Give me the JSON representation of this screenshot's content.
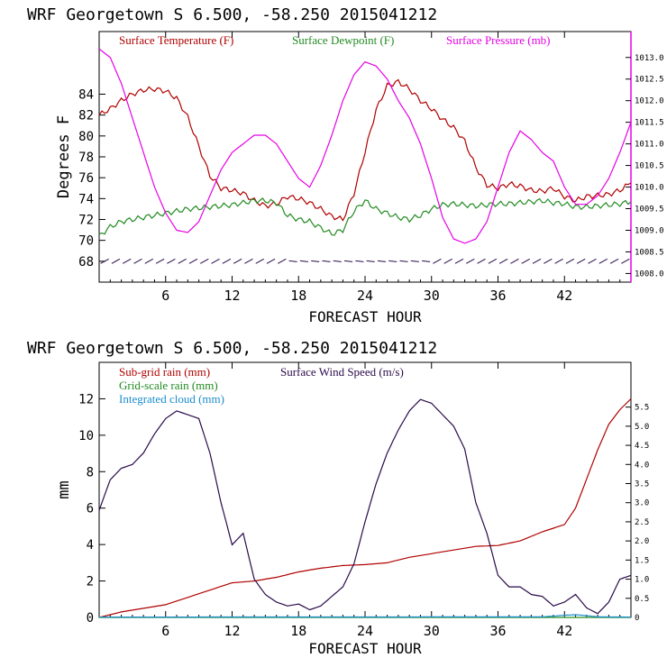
{
  "chart_data": [
    {
      "type": "line",
      "title": "WRF   Georgetown S   6.500, -58.250  2015041212",
      "xlabel": "FORECAST HOUR",
      "ylabel": "Degrees F",
      "xlim": [
        0,
        48
      ],
      "ylim": [
        66,
        90
      ],
      "y2lim": [
        1007.8,
        1013.6
      ],
      "xticks": [
        "6",
        "12",
        "18",
        "24",
        "30",
        "36",
        "42"
      ],
      "yticks": [
        "68",
        "70",
        "72",
        "74",
        "76",
        "78",
        "80",
        "82",
        "84"
      ],
      "y2ticks": [
        "1008.0",
        "1008.5",
        "1009.0",
        "1009.5",
        "1010.0",
        "1010.5",
        "1011.0",
        "1011.5",
        "1012.0",
        "1012.5",
        "1013.0"
      ],
      "legend": [
        {
          "label": "Surface Temperature (F)",
          "color": "#b00000"
        },
        {
          "label": "Surface Dewpoint (F)",
          "color": "#228b22"
        },
        {
          "label": "Surface Pressure (mb)",
          "color": "#e600e6"
        }
      ],
      "wind_barbs": "row of wind barbs along 68 F",
      "series": [
        {
          "name": "Surface Temperature (F)",
          "axis": "left",
          "color": "#b00000",
          "x": [
            0,
            1,
            2,
            3,
            4,
            5,
            6,
            7,
            8,
            9,
            10,
            11,
            12,
            13,
            14,
            15,
            16,
            17,
            18,
            19,
            20,
            21,
            22,
            23,
            24,
            25,
            26,
            27,
            28,
            29,
            30,
            31,
            32,
            33,
            34,
            35,
            36,
            37,
            38,
            39,
            40,
            41,
            42,
            43,
            44,
            45,
            46,
            47,
            48
          ],
          "y": [
            82.0,
            82.6,
            83.4,
            84.0,
            84.4,
            84.5,
            84.3,
            83.6,
            81.8,
            79.0,
            76.2,
            75.0,
            74.8,
            74.5,
            73.8,
            73.3,
            73.5,
            74.2,
            74.0,
            73.6,
            73.0,
            72.3,
            72.0,
            74.5,
            78.5,
            82.5,
            84.8,
            85.2,
            84.5,
            83.4,
            82.6,
            81.6,
            80.8,
            79.5,
            77.0,
            75.3,
            75.0,
            75.4,
            75.2,
            74.8,
            74.7,
            75.0,
            74.2,
            73.8,
            74.2,
            74.3,
            74.4,
            74.8,
            75.5
          ]
        },
        {
          "name": "Surface Dewpoint (F)",
          "axis": "left",
          "color": "#228b22",
          "x": [
            0,
            1,
            2,
            3,
            4,
            5,
            6,
            7,
            8,
            9,
            10,
            11,
            12,
            13,
            14,
            15,
            16,
            17,
            18,
            19,
            20,
            21,
            22,
            23,
            24,
            25,
            26,
            27,
            28,
            29,
            30,
            31,
            32,
            33,
            34,
            35,
            36,
            37,
            38,
            39,
            40,
            41,
            42,
            43,
            44,
            45,
            46,
            47,
            48
          ],
          "y": [
            70.4,
            71.3,
            71.8,
            72.0,
            72.2,
            72.4,
            72.6,
            72.8,
            73.0,
            73.1,
            73.2,
            73.3,
            73.4,
            73.6,
            73.8,
            73.8,
            73.6,
            72.4,
            72.0,
            71.8,
            71.2,
            70.6,
            71.0,
            72.8,
            73.8,
            73.0,
            72.6,
            72.2,
            72.0,
            72.4,
            73.0,
            73.4,
            73.5,
            73.4,
            73.3,
            73.4,
            73.5,
            73.5,
            73.6,
            73.7,
            73.8,
            73.6,
            73.5,
            73.2,
            73.2,
            73.3,
            73.4,
            73.5,
            73.7
          ]
        },
        {
          "name": "Surface Pressure (mb)",
          "axis": "right",
          "color": "#e600e6",
          "x": [
            0,
            1,
            2,
            3,
            4,
            5,
            6,
            7,
            8,
            9,
            10,
            11,
            12,
            13,
            14,
            15,
            16,
            17,
            18,
            19,
            20,
            21,
            22,
            23,
            24,
            25,
            26,
            27,
            28,
            29,
            30,
            31,
            32,
            33,
            34,
            35,
            36,
            37,
            38,
            39,
            40,
            41,
            42,
            43,
            44,
            45,
            46,
            47,
            48
          ],
          "y": [
            1013.2,
            1013.0,
            1012.4,
            1011.6,
            1010.8,
            1010.0,
            1009.4,
            1009.0,
            1008.95,
            1009.2,
            1009.8,
            1010.4,
            1010.8,
            1011.0,
            1011.2,
            1011.2,
            1011.0,
            1010.6,
            1010.2,
            1010.0,
            1010.5,
            1011.2,
            1012.0,
            1012.6,
            1012.9,
            1012.8,
            1012.5,
            1012.0,
            1011.6,
            1011.0,
            1010.2,
            1009.3,
            1008.8,
            1008.7,
            1008.8,
            1009.2,
            1010.0,
            1010.8,
            1011.3,
            1011.1,
            1010.8,
            1010.6,
            1010.0,
            1009.6,
            1009.6,
            1009.8,
            1010.2,
            1010.8,
            1011.5
          ]
        }
      ]
    },
    {
      "type": "line",
      "title": "WRF   Georgetown S   6.500, -58.250  2015041212",
      "xlabel": "FORECAST HOUR",
      "ylabel": "mm",
      "xlim": [
        0,
        48
      ],
      "ylim": [
        0,
        14
      ],
      "y2lim": [
        0,
        6.67
      ],
      "xticks": [
        "6",
        "12",
        "18",
        "24",
        "30",
        "36",
        "42"
      ],
      "yticks": [
        "0",
        "2",
        "4",
        "6",
        "8",
        "10",
        "12"
      ],
      "y2ticks": [
        "0",
        "0.5",
        "1.0",
        "1.5",
        "2.0",
        "2.5",
        "3.0",
        "3.5",
        "4.0",
        "4.5",
        "5.0",
        "5.5"
      ],
      "legend": [
        {
          "label": "Sub-grid rain (mm)",
          "color": "#b00000"
        },
        {
          "label": "Surface Wind Speed (m/s)",
          "color": "#2a0a4a"
        },
        {
          "label": "Grid-scale rain (mm)",
          "color": "#228b22"
        },
        {
          "label": "Integrated cloud (mm)",
          "color": "#1a8ccc"
        }
      ],
      "series": [
        {
          "name": "Sub-grid rain (mm)",
          "axis": "left",
          "color": "#b00000",
          "x": [
            0,
            2,
            4,
            6,
            8,
            10,
            12,
            14,
            16,
            18,
            20,
            22,
            24,
            26,
            28,
            30,
            32,
            34,
            36,
            38,
            40,
            42,
            43,
            44,
            45,
            46,
            47,
            48
          ],
          "y": [
            0,
            0.3,
            0.5,
            0.7,
            1.1,
            1.5,
            1.9,
            2.0,
            2.2,
            2.5,
            2.7,
            2.85,
            2.9,
            3.0,
            3.3,
            3.5,
            3.7,
            3.9,
            3.95,
            4.2,
            4.7,
            5.1,
            6.0,
            7.6,
            9.2,
            10.6,
            11.4,
            12.0
          ]
        },
        {
          "name": "Surface Wind Speed (m/s)",
          "axis": "right",
          "color": "#2a0a4a",
          "x": [
            0,
            1,
            2,
            3,
            4,
            5,
            6,
            7,
            8,
            9,
            10,
            11,
            12,
            13,
            14,
            15,
            16,
            17,
            18,
            19,
            20,
            21,
            22,
            23,
            24,
            25,
            26,
            27,
            28,
            29,
            30,
            31,
            32,
            33,
            34,
            35,
            36,
            37,
            38,
            39,
            40,
            41,
            42,
            43,
            44,
            45,
            46,
            47,
            48
          ],
          "y": [
            2.8,
            3.6,
            3.9,
            4.0,
            4.3,
            4.8,
            5.2,
            5.4,
            5.3,
            5.2,
            4.3,
            3.0,
            1.9,
            2.2,
            1.0,
            0.6,
            0.4,
            0.3,
            0.35,
            0.2,
            0.3,
            0.55,
            0.8,
            1.4,
            2.5,
            3.5,
            4.3,
            4.9,
            5.4,
            5.7,
            5.6,
            5.3,
            5.0,
            4.4,
            3.0,
            2.2,
            1.1,
            0.8,
            0.8,
            0.6,
            0.55,
            0.3,
            0.4,
            0.6,
            0.25,
            0.1,
            0.4,
            1.0,
            1.1
          ]
        },
        {
          "name": "Grid-scale rain (mm)",
          "axis": "left",
          "color": "#228b22",
          "x": [
            0,
            48
          ],
          "y": [
            0,
            0
          ]
        },
        {
          "name": "Integrated cloud (mm)",
          "axis": "left",
          "color": "#1a8ccc",
          "x": [
            0,
            40,
            42,
            43,
            44,
            45,
            48
          ],
          "y": [
            0.02,
            0.03,
            0.12,
            0.15,
            0.1,
            0.03,
            0.02
          ]
        }
      ]
    }
  ]
}
